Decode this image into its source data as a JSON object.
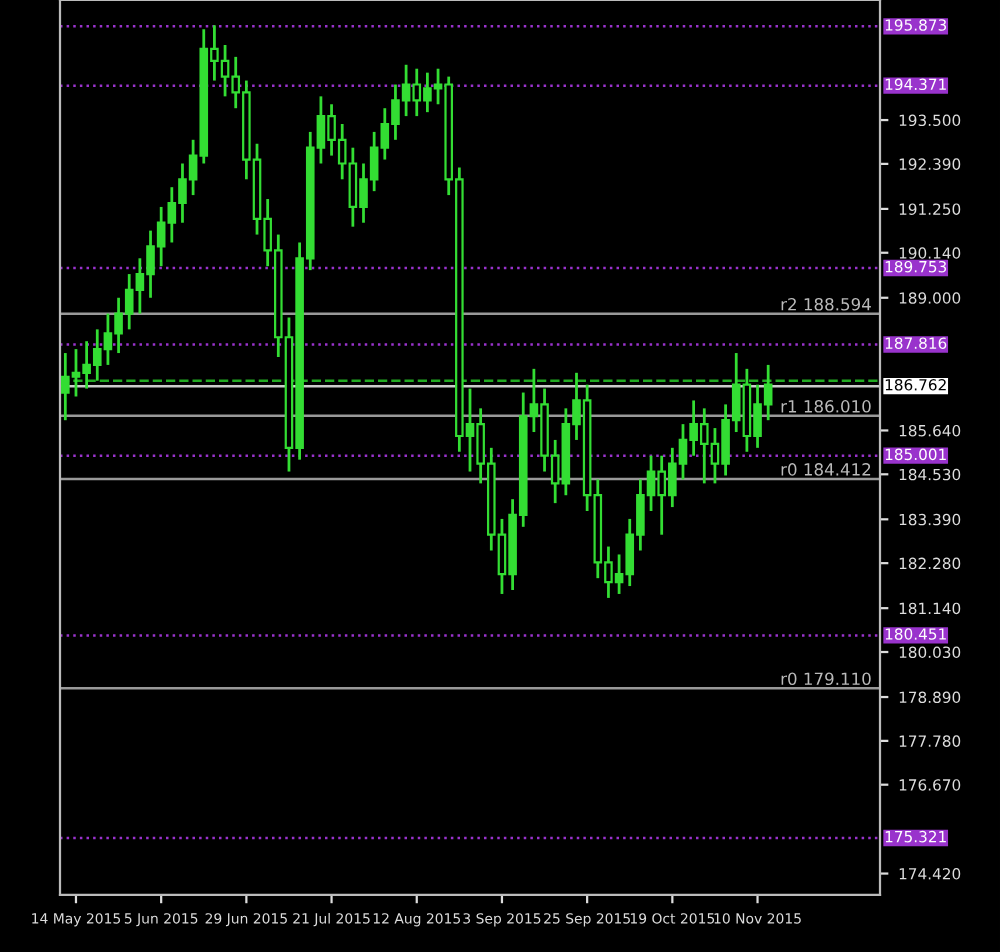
{
  "chart_data": {
    "type": "candlestick",
    "categories": [
      null,
      "14 May 2015",
      null,
      null,
      null,
      null,
      null,
      null,
      null,
      "5 Jun 2015",
      null,
      null,
      null,
      null,
      null,
      null,
      null,
      "29 Jun 2015",
      null,
      null,
      null,
      null,
      null,
      null,
      null,
      "21 Jul 2015",
      null,
      null,
      null,
      null,
      null,
      null,
      null,
      "12 Aug 2015",
      null,
      null,
      null,
      null,
      null,
      null,
      null,
      "3 Sep 2015",
      null,
      null,
      null,
      null,
      null,
      null,
      null,
      "25 Sep 2015",
      null,
      null,
      null,
      null,
      null,
      null,
      null,
      "19 Oct 2015",
      null,
      null,
      null,
      null,
      null,
      null,
      null,
      "10 Nov 2015",
      null,
      null,
      null,
      null,
      null,
      null,
      null,
      null,
      null,
      null,
      null
    ],
    "series": [
      {
        "color": "#33dd33",
        "ohlc": [
          [
            186.6,
            187.6,
            185.9,
            187.0
          ],
          [
            187.0,
            187.7,
            186.5,
            187.1
          ],
          [
            187.1,
            187.9,
            186.7,
            187.3
          ],
          [
            187.3,
            188.2,
            186.9,
            187.7
          ],
          [
            187.7,
            188.6,
            187.3,
            188.1
          ],
          [
            188.1,
            189.0,
            187.6,
            188.6
          ],
          [
            188.6,
            189.6,
            188.2,
            189.2
          ],
          [
            189.2,
            190.0,
            188.6,
            189.6
          ],
          [
            189.6,
            190.7,
            189.0,
            190.3
          ],
          [
            190.3,
            191.3,
            189.8,
            190.9
          ],
          [
            190.9,
            191.8,
            190.4,
            191.4
          ],
          [
            191.4,
            192.4,
            190.9,
            192.0
          ],
          [
            192.0,
            193.0,
            191.6,
            192.6
          ],
          [
            192.6,
            195.8,
            192.4,
            195.3
          ],
          [
            195.3,
            195.9,
            194.5,
            195.0
          ],
          [
            195.0,
            195.4,
            194.1,
            194.6
          ],
          [
            194.6,
            195.1,
            193.8,
            194.2
          ],
          [
            194.2,
            194.5,
            192.0,
            192.5
          ],
          [
            192.5,
            192.9,
            190.6,
            191.0
          ],
          [
            191.0,
            191.5,
            189.8,
            190.2
          ],
          [
            190.2,
            190.6,
            187.5,
            188.0
          ],
          [
            188.0,
            188.5,
            184.6,
            185.2
          ],
          [
            185.2,
            190.4,
            184.9,
            190.0
          ],
          [
            190.0,
            193.2,
            189.7,
            192.8
          ],
          [
            192.8,
            194.1,
            192.4,
            193.6
          ],
          [
            193.6,
            193.9,
            192.6,
            193.0
          ],
          [
            193.0,
            193.4,
            192.0,
            192.4
          ],
          [
            192.4,
            192.8,
            190.8,
            191.3
          ],
          [
            191.3,
            192.4,
            190.9,
            192.0
          ],
          [
            192.0,
            193.2,
            191.7,
            192.8
          ],
          [
            192.8,
            193.8,
            192.5,
            193.4
          ],
          [
            193.4,
            194.4,
            193.0,
            194.0
          ],
          [
            194.0,
            194.9,
            193.6,
            194.4
          ],
          [
            194.4,
            194.8,
            193.6,
            194.0
          ],
          [
            194.0,
            194.7,
            193.7,
            194.3
          ],
          [
            194.3,
            194.8,
            193.9,
            194.4
          ],
          [
            194.4,
            194.6,
            191.6,
            192.0
          ],
          [
            192.0,
            192.3,
            185.1,
            185.5
          ],
          [
            185.5,
            186.7,
            184.6,
            185.8
          ],
          [
            185.8,
            186.2,
            184.3,
            184.8
          ],
          [
            184.8,
            185.2,
            182.6,
            183.0
          ],
          [
            183.0,
            183.4,
            181.5,
            182.0
          ],
          [
            182.0,
            183.9,
            181.6,
            183.5
          ],
          [
            183.5,
            186.6,
            183.2,
            186.0
          ],
          [
            186.0,
            187.2,
            185.6,
            186.3
          ],
          [
            186.3,
            186.7,
            184.6,
            185.0
          ],
          [
            185.0,
            185.4,
            183.8,
            184.3
          ],
          [
            184.3,
            186.2,
            184.0,
            185.8
          ],
          [
            185.8,
            187.1,
            185.4,
            186.4
          ],
          [
            186.4,
            186.8,
            183.6,
            184.0
          ],
          [
            184.0,
            184.4,
            181.9,
            182.3
          ],
          [
            182.3,
            182.7,
            181.4,
            181.8
          ],
          [
            181.8,
            182.5,
            181.5,
            182.0
          ],
          [
            182.0,
            183.4,
            181.7,
            183.0
          ],
          [
            183.0,
            184.4,
            182.6,
            184.0
          ],
          [
            184.0,
            185.0,
            183.6,
            184.6
          ],
          [
            184.6,
            185.0,
            183.0,
            184.0
          ],
          [
            184.0,
            185.2,
            183.7,
            184.8
          ],
          [
            184.8,
            185.8,
            184.4,
            185.4
          ],
          [
            185.4,
            186.4,
            185.0,
            185.8
          ],
          [
            185.8,
            186.2,
            184.3,
            185.3
          ],
          [
            185.3,
            185.7,
            184.3,
            184.8
          ],
          [
            184.8,
            186.3,
            184.5,
            185.9
          ],
          [
            185.9,
            187.6,
            185.6,
            186.8
          ],
          [
            186.8,
            187.2,
            185.1,
            185.5
          ],
          [
            185.5,
            186.8,
            185.2,
            186.3
          ],
          [
            186.3,
            187.3,
            185.9,
            186.8
          ],
          null,
          null,
          null,
          null,
          null,
          null,
          null,
          null,
          null,
          null
        ]
      }
    ],
    "ylim": [
      173.88,
      196.54
    ],
    "yticks": [
      {
        "value": 193.5,
        "label": "193.500"
      },
      {
        "value": 192.39,
        "label": "192.390"
      },
      {
        "value": 191.25,
        "label": "191.250"
      },
      {
        "value": 190.14,
        "label": "190.140"
      },
      {
        "value": 189.0,
        "label": "189.000"
      },
      {
        "value": 185.64,
        "label": "185.640"
      },
      {
        "value": 184.53,
        "label": "184.530"
      },
      {
        "value": 183.39,
        "label": "183.390"
      },
      {
        "value": 182.28,
        "label": "182.280"
      },
      {
        "value": 181.14,
        "label": "181.140"
      },
      {
        "value": 180.03,
        "label": "180.030"
      },
      {
        "value": 178.89,
        "label": "178.890"
      },
      {
        "value": 177.78,
        "label": "177.780"
      },
      {
        "value": 176.67,
        "label": "176.670"
      },
      {
        "value": 174.42,
        "label": "174.420"
      }
    ],
    "ref_lines": [
      {
        "axis": "y",
        "value": 195.873,
        "label": "195.873",
        "color": "#9933cc",
        "line_style": "dotted"
      },
      {
        "axis": "y",
        "value": 194.371,
        "label": "194.371",
        "color": "#9933cc",
        "line_style": "dotted"
      },
      {
        "axis": "y",
        "value": 189.753,
        "label": "189.753",
        "color": "#9933cc",
        "line_style": "dotted"
      },
      {
        "axis": "y",
        "value": 187.816,
        "label": "187.816",
        "color": "#9933cc",
        "line_style": "dotted"
      },
      {
        "axis": "y",
        "value": 185.001,
        "label": "185.001",
        "color": "#9933cc",
        "line_style": "dotted"
      },
      {
        "axis": "y",
        "value": 180.451,
        "label": "180.451",
        "color": "#9933cc",
        "line_style": "dotted"
      },
      {
        "axis": "y",
        "value": 175.321,
        "label": "175.321",
        "color": "#9933cc",
        "line_style": "dotted"
      },
      {
        "axis": "y",
        "value": 188.594,
        "label": "r2 188.594",
        "color": "#999999",
        "line_style": "solid"
      },
      {
        "axis": "y",
        "value": 186.01,
        "label": "r1 186.010",
        "color": "#999999",
        "line_style": "solid"
      },
      {
        "axis": "y",
        "value": 184.412,
        "label": "r0 184.412",
        "color": "#999999",
        "line_style": "solid"
      },
      {
        "axis": "y",
        "value": 179.11,
        "label": "r0 179.110",
        "color": "#999999",
        "line_style": "solid"
      },
      {
        "axis": "y",
        "value": 186.762,
        "label": "186.762",
        "color": "#cccccc",
        "line_style": "solid"
      },
      {
        "axis": "y",
        "value": 186.9,
        "color": "#22aa22",
        "line_style": "dashed"
      }
    ],
    "grid": false
  }
}
